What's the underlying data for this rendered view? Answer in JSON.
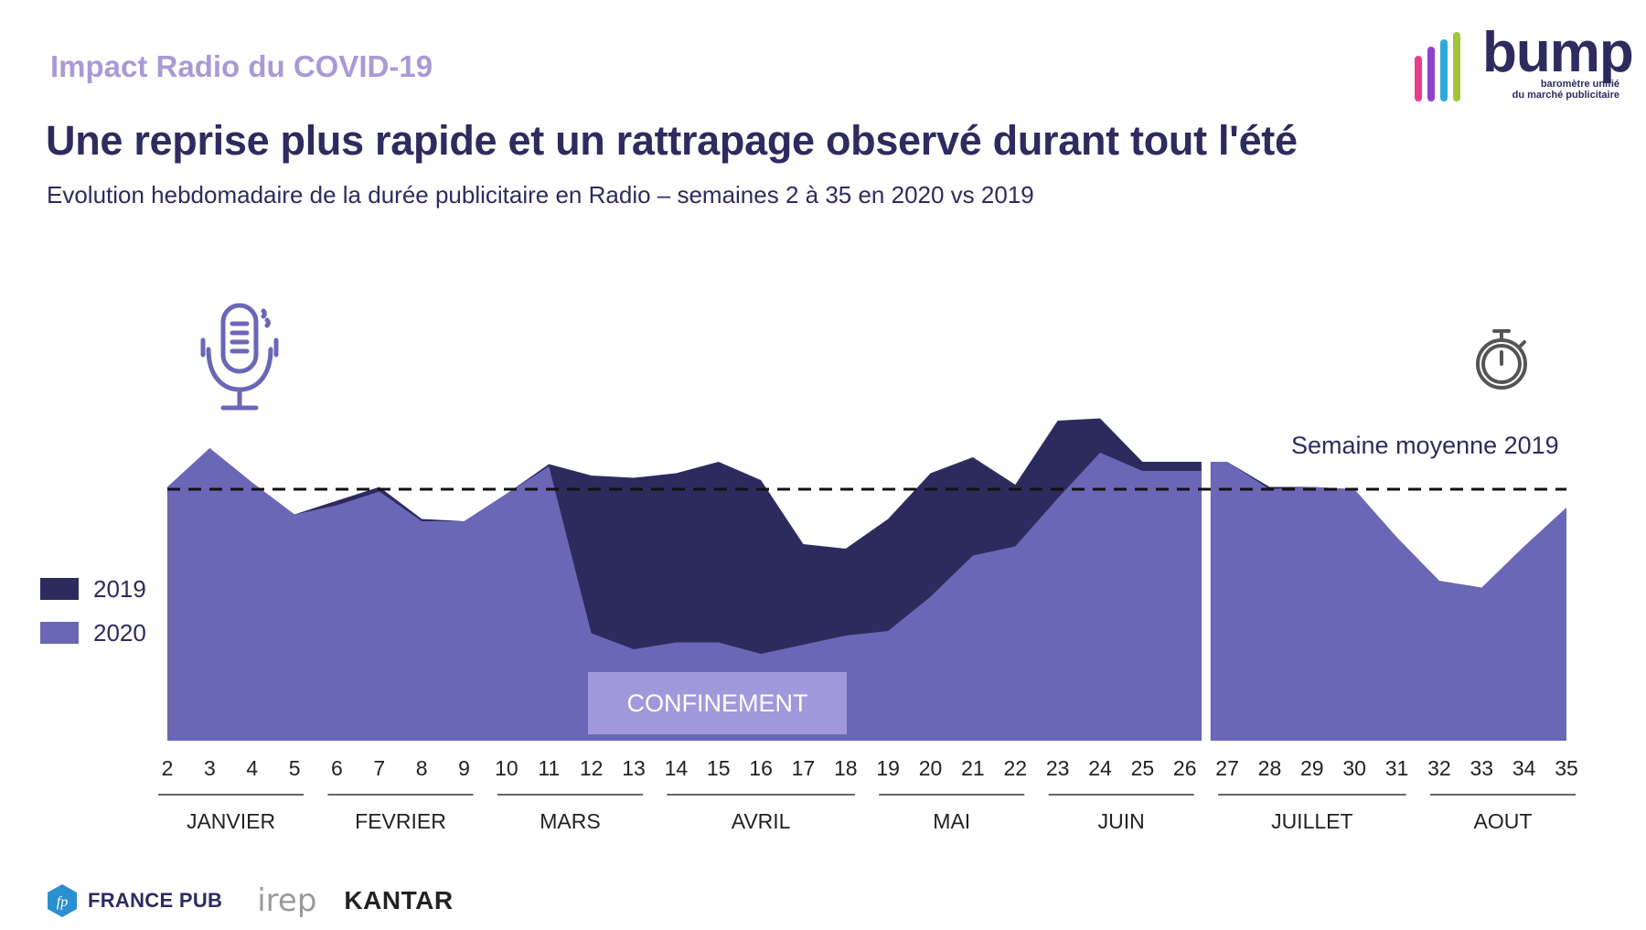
{
  "header": {
    "kicker": "Impact Radio du COVID-19",
    "title": "Une reprise plus rapide et un rattrapage observé durant tout l'été",
    "subtitle": "Evolution hebdomadaire de la durée publicitaire en Radio – semaines 2 à 35 en 2020 vs 2019"
  },
  "logo": {
    "name": "bump",
    "tagline_line1": "baromètre unifié",
    "tagline_line2": "du marché publicitaire",
    "bar_colors": [
      "#e83e8c",
      "#8e44c9",
      "#2fa8d8",
      "#a0c53a",
      "#f2c500"
    ]
  },
  "icons": [
    "microphone-icon",
    "stopwatch-icon"
  ],
  "colors": {
    "s2019": "#2d2b5e",
    "s2020": "#6a67b7",
    "confinement": "#a198dc",
    "text": "#2e2b5f"
  },
  "confinement_label": "CONFINEMENT",
  "average_label": "Semaine moyenne 2019",
  "chart_data": {
    "type": "area",
    "x": [
      2,
      3,
      4,
      5,
      6,
      7,
      8,
      9,
      10,
      11,
      12,
      13,
      14,
      15,
      16,
      17,
      18,
      19,
      20,
      21,
      22,
      23,
      24,
      25,
      26,
      27,
      28,
      29,
      30,
      31,
      32,
      33,
      34,
      35
    ],
    "series": [
      {
        "name": "2019",
        "values": [
          110,
          128,
          111,
          99,
          105,
          111,
          97,
          96,
          108,
          121,
          116,
          115,
          117,
          122,
          114,
          86,
          84,
          97,
          117,
          124,
          112,
          140,
          141,
          122,
          122,
          122,
          111,
          111,
          110,
          null,
          null,
          null,
          null,
          null
        ]
      },
      {
        "name": "2020",
        "values": [
          111,
          128,
          113,
          99,
          103,
          109,
          96,
          96,
          108,
          120,
          47,
          40,
          43,
          43,
          38,
          42,
          46,
          48,
          63,
          81,
          85,
          106,
          126,
          118,
          118,
          122,
          110,
          111,
          110,
          89,
          70,
          67,
          85,
          102
        ]
      }
    ],
    "average_2019": 110,
    "ylim": [
      0,
      160
    ],
    "months": [
      {
        "label": "JANVIER",
        "start": 2,
        "end": 5
      },
      {
        "label": "FEVRIER",
        "start": 6,
        "end": 9
      },
      {
        "label": "MARS",
        "start": 10,
        "end": 13
      },
      {
        "label": "AVRIL",
        "start": 14,
        "end": 18
      },
      {
        "label": "MAI",
        "start": 19,
        "end": 22
      },
      {
        "label": "JUIN",
        "start": 23,
        "end": 26
      },
      {
        "label": "JUILLET",
        "start": 27,
        "end": 31
      },
      {
        "label": "AOUT",
        "start": 32,
        "end": 35
      }
    ],
    "confinement_weeks": [
      12,
      18
    ],
    "break_after_week": 26
  },
  "legend": [
    {
      "label": "2019",
      "color": "#2d2b5e"
    },
    {
      "label": "2020",
      "color": "#6a67b7"
    }
  ],
  "footer": {
    "france_pub": "FRANCE PUB",
    "fp_mark": "fp",
    "irep": "irep",
    "kantar": "KANTAR"
  }
}
